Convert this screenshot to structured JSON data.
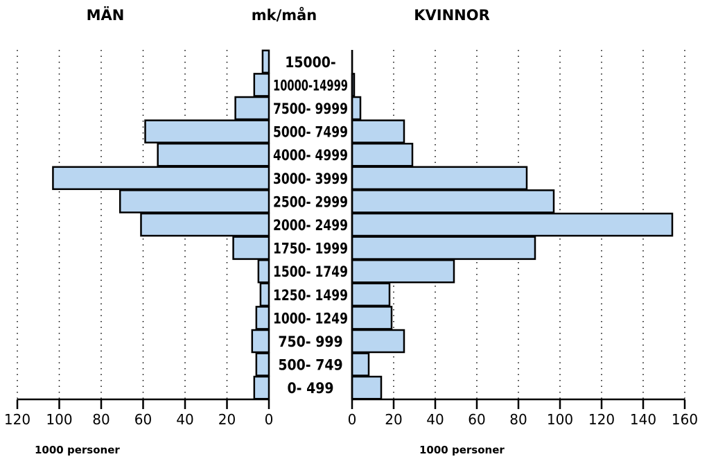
{
  "chart_data": {
    "type": "bar",
    "orientation": "horizontal",
    "categories": [
      "15000-",
      "10000-14999",
      "7500- 9999",
      "5000- 7499",
      "4000- 4999",
      "3000- 3999",
      "2500- 2999",
      "2000- 2499",
      "1750- 1999",
      "1500- 1749",
      "1250- 1499",
      "1000- 1249",
      "750- 999",
      "500- 749",
      "0- 499"
    ],
    "series": [
      {
        "name": "MÄN",
        "values": [
          3,
          7,
          16,
          59,
          53,
          103,
          71,
          61,
          17,
          5,
          4,
          6,
          8,
          6,
          7
        ]
      },
      {
        "name": "KVINNOR",
        "values": [
          0,
          1,
          4,
          25,
          29,
          84,
          97,
          154,
          88,
          49,
          18,
          19,
          25,
          8,
          14
        ]
      }
    ],
    "title": "mk/mån",
    "left_axis": {
      "ticks": [
        "120",
        "100",
        "80",
        "60",
        "40",
        "20",
        "0"
      ],
      "max": 120,
      "unit_label": "1000 personer"
    },
    "right_axis": {
      "ticks": [
        "0",
        "20",
        "40",
        "60",
        "80",
        "100",
        "120",
        "140",
        "160"
      ],
      "max": 160,
      "unit_label": "1000 personer"
    },
    "grid": "dotted vertical",
    "bar_color": "#b9d6f1"
  }
}
